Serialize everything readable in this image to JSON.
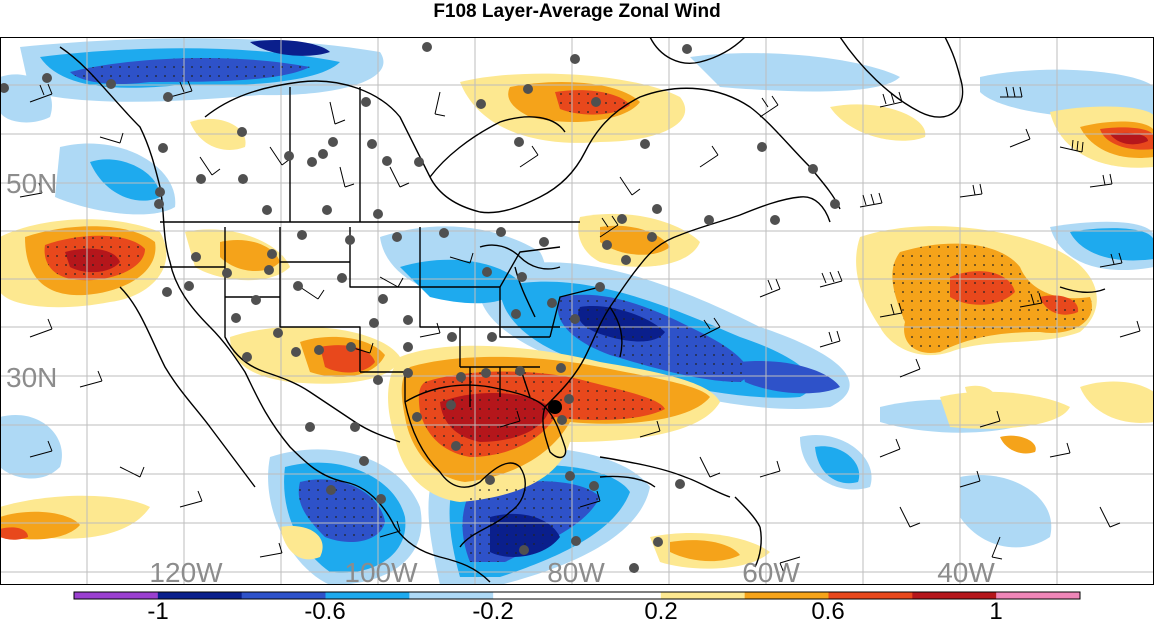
{
  "title": "F108 Layer-Average Zonal Wind",
  "map": {
    "lat_labels": [
      "50N",
      "30N"
    ],
    "lon_labels": [
      "120W",
      "100W",
      "80W",
      "60W",
      "40W"
    ],
    "label_color": "#8c8c8c"
  },
  "colorbar": {
    "tick_labels": [
      "-1",
      "-0.6",
      "-0.2",
      "0.2",
      "0.6",
      "1"
    ],
    "colors": [
      "#9a3fcf",
      "#0a1f8c",
      "#2e52c9",
      "#1eaaee",
      "#aed9f5",
      "#ffffff",
      "#ffffff",
      "#fde890",
      "#f5a31a",
      "#e8481c",
      "#b5161b",
      "#ef86b8"
    ]
  },
  "colors": {
    "positive_strong": "#b5161b",
    "positive_mid": "#e8481c",
    "positive_low": "#f5a31a",
    "positive_weak": "#fde890",
    "negative_weak": "#aed9f5",
    "negative_low": "#1eaaee",
    "negative_mid": "#2e52c9",
    "negative_strong": "#0a1f8c",
    "station": "#505050"
  }
}
